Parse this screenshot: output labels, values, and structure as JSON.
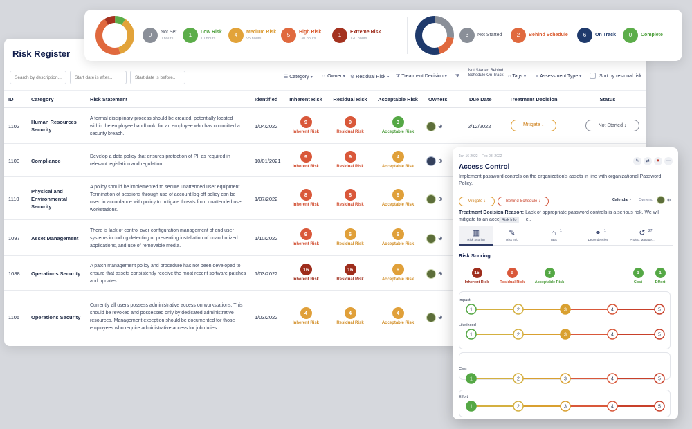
{
  "summary": {
    "risk_levels": [
      {
        "count": "0",
        "label": "Not Set",
        "hours": "0 hours",
        "color": "#8a8f98",
        "text_color": "#4a5060"
      },
      {
        "count": "1",
        "label": "Low Risk",
        "hours": "10 hours",
        "color": "#5cad4a",
        "text_color": "#4c9e3a"
      },
      {
        "count": "4",
        "label": "Medium Risk",
        "hours": "95 hours",
        "color": "#e2a33a",
        "text_color": "#d9962a"
      },
      {
        "count": "5",
        "label": "High Risk",
        "hours": "130 hours",
        "color": "#e0693e",
        "text_color": "#d95a2e"
      },
      {
        "count": "1",
        "label": "Extreme Risk",
        "hours": "120 hours",
        "color": "#a4321f",
        "text_color": "#9c2c1c"
      }
    ],
    "statuses": [
      {
        "count": "3",
        "label": "Not Started",
        "color": "#8a8f98",
        "text_color": "#4a5060"
      },
      {
        "count": "2",
        "label": "Behind Schedule",
        "color": "#e0693e",
        "text_color": "#d95a2e"
      },
      {
        "count": "6",
        "label": "On Track",
        "color": "#1f3a6c",
        "text_color": "#1f3a6c"
      },
      {
        "count": "0",
        "label": "Complete",
        "color": "#5cad4a",
        "text_color": "#4c9e3a"
      }
    ]
  },
  "register": {
    "title": "Risk Register",
    "filters": {
      "search_placeholder": "Search by description...",
      "start_after_placeholder": "Start date is after...",
      "start_before_placeholder": "Start date is before...",
      "category": "Category",
      "owner": "Owner",
      "residual_risk": "Residual Risk",
      "treatment_decision": "Treatment Decision",
      "status_filter": "Not Started Behind Schedule On Track",
      "tags": "Tags",
      "assessment_type": "Assessment Type",
      "sort_label": "Sort by residual risk"
    },
    "columns": {
      "id": "ID",
      "category": "Category",
      "statement": "Risk Statement",
      "identified": "Identified",
      "inherent": "Inherent Risk",
      "residual": "Residual Risk",
      "acceptable": "Acceptable Risk",
      "owners": "Owners",
      "due": "Due Date",
      "treatment": "Treatment Decision",
      "status": "Status"
    },
    "risk_labels": {
      "inherent": "Inherent Risk",
      "residual": "Residual Risk",
      "acceptable": "Acceptable Risk"
    },
    "rows": [
      {
        "id": "1102",
        "category": "Human Resources Security",
        "statement": "A formal disciplinary process should be created, potentially located within the employee handbook, for an employee who has committed a security breach.",
        "identified": "1/04/2022",
        "inherent": "9",
        "residual": "9",
        "acceptable": "3",
        "due": "2/12/2022",
        "treatment": "Mitigate ↓",
        "status": "Not Started ↓"
      },
      {
        "id": "1100",
        "category": "Compliance",
        "statement": "Develop a data policy that ensures protection of PII as required in relevant legislation and regulation.",
        "identified": "10/01/2021",
        "inherent": "9",
        "residual": "9",
        "acceptable": "4",
        "due": "",
        "treatment": "",
        "status": ""
      },
      {
        "id": "1110",
        "category": "Physical and Environmental Security",
        "statement": "A policy should be implemented to secure unattended user equipment. Termination of sessions through use of account log-off policy can be used in accordance with policy to mitigate threats from unattended user workstations.",
        "identified": "1/07/2022",
        "inherent": "8",
        "residual": "8",
        "acceptable": "6",
        "due": "",
        "treatment": "",
        "status": ""
      },
      {
        "id": "1097",
        "category": "Asset Management",
        "statement": "There is lack of control over configuration management of end user systems including detecting or preventing installation of unauthorized applications, and use of removable media.",
        "identified": "1/10/2022",
        "inherent": "9",
        "residual": "6",
        "acceptable": "6",
        "due": "",
        "treatment": "",
        "status": ""
      },
      {
        "id": "1088",
        "category": "Operations Security",
        "statement": "A patch management policy and procedure has not been developed to ensure that assets consistently receive the most recent software patches and updates.",
        "identified": "1/03/2022",
        "inherent": "16",
        "residual": "16",
        "acceptable": "6",
        "due": "",
        "treatment": "",
        "status": ""
      },
      {
        "id": "1105",
        "category": "Operations Security",
        "statement": "Currently all users possess administrative access on workstations. This should be revoked and possessed only by dedicated administrative resources. Management exception should be documented for those employees who require administrative access for job duties.",
        "identified": "1/03/2022",
        "inherent": "4",
        "residual": "4",
        "acceptable": "4",
        "due": "",
        "treatment": "",
        "status": ""
      }
    ]
  },
  "detail": {
    "dates": "Jan 16 2022 – Feb 08, 2022",
    "title": "Access Control",
    "description": "Implement password controls on the organization's assets in line with organizational Password Policy.",
    "mitigate": "Mitigate ↓",
    "behind": "Behind Schedule ↓",
    "calendar": "Calendar",
    "owners": "Owners:",
    "reason_label": "Treatment Decision Reason:",
    "reason_text": "Lack of appropriate password controls is a serious risk. We will mitigate to an acce",
    "reason_tail": "el.",
    "tooltip": "Risk Info",
    "tabs": [
      {
        "label": "Risk Scoring",
        "icon": "chart-icon",
        "glyph": "▥",
        "count": ""
      },
      {
        "label": "Risk Info",
        "icon": "edit-icon",
        "glyph": "✎",
        "count": ""
      },
      {
        "label": "Tags",
        "icon": "tag-icon",
        "glyph": "⌂",
        "count": "1"
      },
      {
        "label": "Dependencies",
        "icon": "link-icon",
        "glyph": "⚭",
        "count": "1"
      },
      {
        "label": "Project Manage...",
        "icon": "history-icon",
        "glyph": "↺",
        "count": "27"
      }
    ],
    "section": "Risk Scoring",
    "scores": [
      {
        "value": "15",
        "label": "Inherent Risk"
      },
      {
        "value": "9",
        "label": "Residual Risk"
      },
      {
        "value": "3",
        "label": "Acceptable Risk"
      },
      {
        "value": "1",
        "label": "Cost"
      },
      {
        "value": "1",
        "label": "Effort"
      }
    ],
    "scales": [
      {
        "label": "Impact",
        "selected": 3
      },
      {
        "label": "Likelihood",
        "selected": 3
      },
      {
        "label": "Cost",
        "selected": 1
      },
      {
        "label": "Effort",
        "selected": 1
      }
    ],
    "scale_numbers": [
      "1",
      "2",
      "3",
      "4",
      "5"
    ]
  }
}
